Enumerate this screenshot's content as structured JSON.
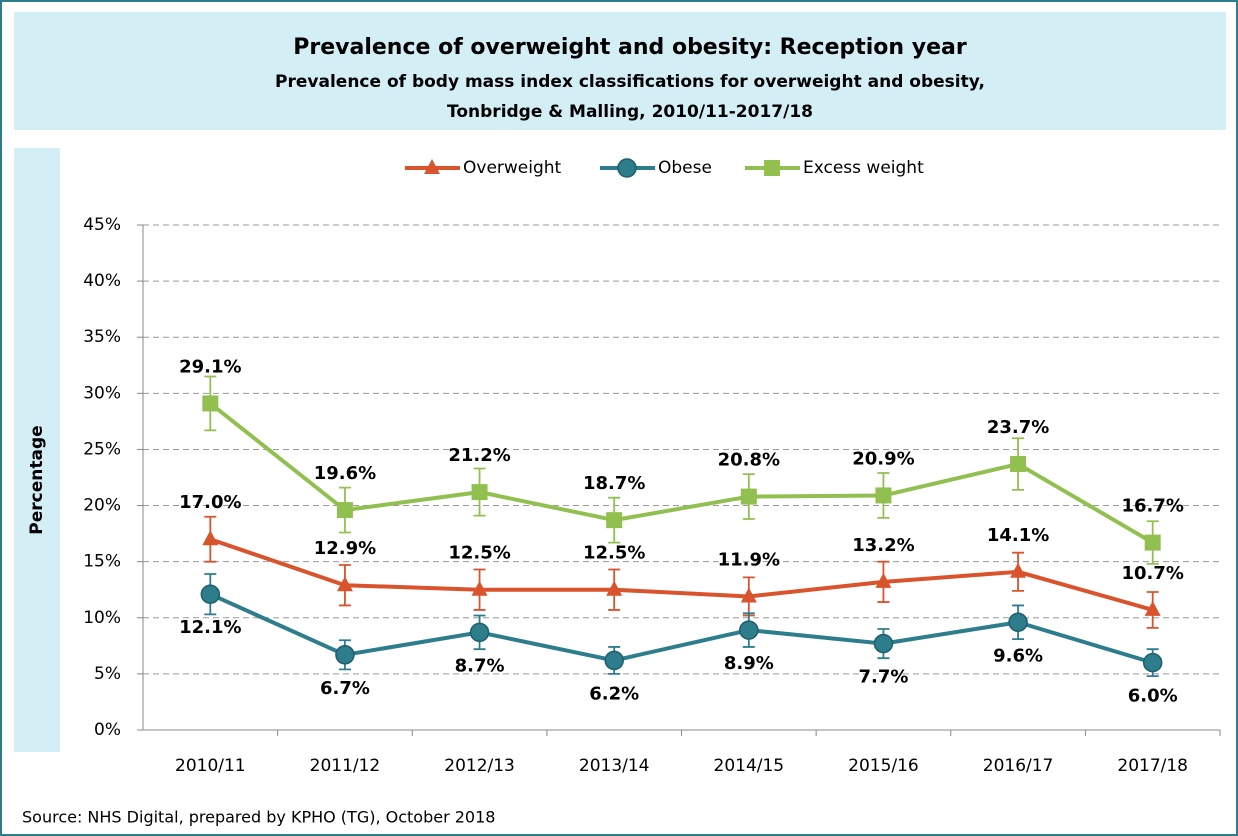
{
  "chart_data": {
    "type": "line",
    "title": "Prevalence of overweight and obesity: Reception year",
    "subtitle": "Prevalence of body mass index classifications for overweight and obesity,",
    "subtitle2": "Tonbridge & Malling, 2010/11-2017/18",
    "y_label": "Percentage",
    "source": "Source: NHS Digital, prepared by KPHO (TG), October 2018",
    "categories": [
      "2010/11",
      "2011/12",
      "2012/13",
      "2013/14",
      "2014/15",
      "2015/16",
      "2016/17",
      "2017/18"
    ],
    "series": [
      {
        "name": "Overweight",
        "color": "#d9542c",
        "marker": "triangle",
        "values": [
          17.0,
          12.9,
          12.5,
          12.5,
          11.9,
          13.2,
          14.1,
          10.7
        ],
        "value_labels": [
          "17.0%",
          "12.9%",
          "12.5%",
          "12.5%",
          "11.9%",
          "13.2%",
          "14.1%",
          "10.7%"
        ],
        "errors": [
          2.0,
          1.8,
          1.8,
          1.8,
          1.7,
          1.8,
          1.7,
          1.6
        ]
      },
      {
        "name": "Obese",
        "color": "#2e7d8c",
        "marker": "circle",
        "values": [
          12.1,
          6.7,
          8.7,
          6.2,
          8.9,
          7.7,
          9.6,
          6.0
        ],
        "value_labels": [
          "12.1%",
          "6.7%",
          "8.7%",
          "6.2%",
          "8.9%",
          "7.7%",
          "9.6%",
          "6.0%"
        ],
        "errors": [
          1.8,
          1.3,
          1.5,
          1.2,
          1.5,
          1.3,
          1.5,
          1.2
        ]
      },
      {
        "name": "Excess weight",
        "color": "#92c050",
        "marker": "square",
        "values": [
          29.1,
          19.6,
          21.2,
          18.7,
          20.8,
          20.9,
          23.7,
          16.7
        ],
        "value_labels": [
          "29.1%",
          "19.6%",
          "21.2%",
          "18.7%",
          "20.8%",
          "20.9%",
          "23.7%",
          "16.7%"
        ],
        "errors": [
          2.4,
          2.0,
          2.1,
          2.0,
          2.0,
          2.0,
          2.3,
          1.9
        ]
      }
    ],
    "ylim": [
      0,
      45
    ],
    "yticks": [
      {
        "value": 0,
        "label": "0%"
      },
      {
        "value": 5,
        "label": "5%"
      },
      {
        "value": 10,
        "label": "10%"
      },
      {
        "value": 15,
        "label": "15%"
      },
      {
        "value": 20,
        "label": "20%"
      },
      {
        "value": 25,
        "label": "25%"
      },
      {
        "value": 30,
        "label": "30%"
      },
      {
        "value": 35,
        "label": "35%"
      },
      {
        "value": 40,
        "label": "40%"
      },
      {
        "value": 45,
        "label": "45%"
      }
    ],
    "grid": true,
    "legend": "top"
  }
}
